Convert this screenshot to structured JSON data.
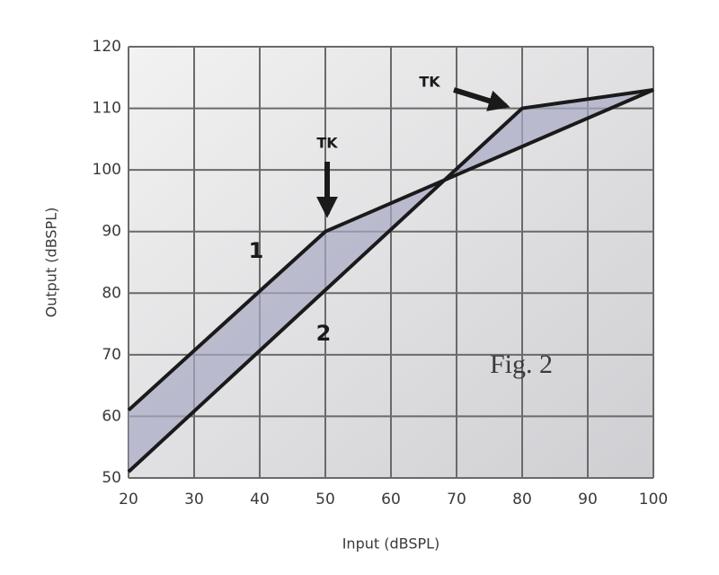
{
  "chart_data": {
    "type": "line",
    "xlabel": "Input (dBSPL)",
    "ylabel": "Output (dBSPL)",
    "series": [
      {
        "name": "1",
        "color": "#1a1a1a",
        "x": [
          20,
          50,
          100
        ],
        "values": [
          61,
          90,
          113
        ]
      },
      {
        "name": "2",
        "color": "#1a1a1a",
        "x": [
          20,
          80,
          100
        ],
        "values": [
          51,
          110,
          113
        ]
      }
    ],
    "annotations": [
      "TK",
      "TK",
      "Fig. 2"
    ],
    "xlim": [
      20,
      100
    ],
    "xticks": [
      20,
      30,
      40,
      50,
      60,
      70,
      80,
      90,
      100
    ],
    "ylim": [
      50,
      120
    ],
    "yticks": [
      50,
      60,
      70,
      80,
      90,
      100,
      110,
      120
    ],
    "grid": true
  }
}
